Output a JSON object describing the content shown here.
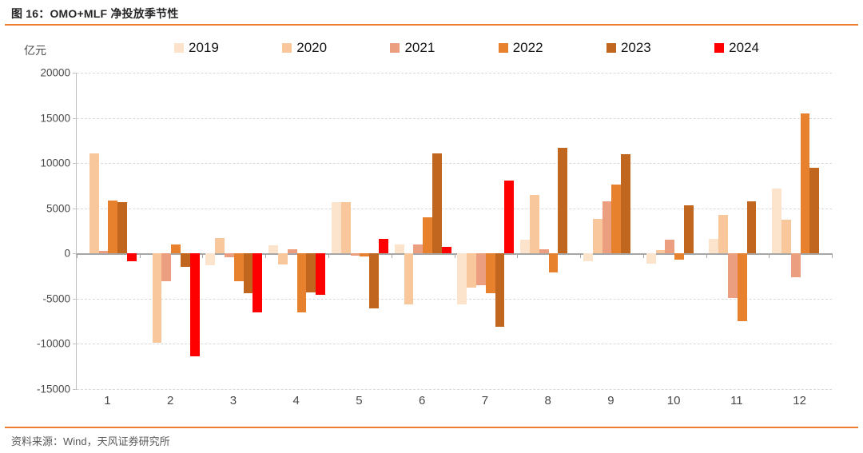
{
  "header": {
    "title": "图 16：OMO+MLF 净投放季节性"
  },
  "footer": {
    "source": "资料来源：Wind，天风证券研究所"
  },
  "colors": {
    "accent_rule": "#ed7d31",
    "axis_label": "#4a4a4a",
    "gridline": "#d9d9d9",
    "zero_line": "#a6a6a6"
  },
  "chart_data": {
    "type": "bar",
    "title": "OMO+MLF 净投放季节性",
    "y_unit": "亿元",
    "xlabel": "",
    "ylabel": "亿元",
    "ylim": [
      -15000,
      20000
    ],
    "ytick_step": 5000,
    "grid": "horizontal-dashed",
    "legend_position": "top",
    "categories": [
      "1",
      "2",
      "3",
      "4",
      "5",
      "6",
      "7",
      "8",
      "9",
      "10",
      "11",
      "12"
    ],
    "series": [
      {
        "name": "2019",
        "color": "#fce3cc",
        "values": [
          null,
          null,
          -1300,
          900,
          5700,
          1000,
          -5600,
          1500,
          -900,
          -1100,
          1600,
          7200
        ]
      },
      {
        "name": "2020",
        "color": "#f8c89c",
        "values": [
          11100,
          -9900,
          1700,
          -1200,
          5700,
          -5600,
          -3800,
          6500,
          3800,
          400,
          4300,
          3700
        ]
      },
      {
        "name": "2021",
        "color": "#eb9e80",
        "values": [
          300,
          -3100,
          -400,
          500,
          -200,
          1000,
          -3500,
          500,
          5800,
          1500,
          -4900,
          -2600
        ]
      },
      {
        "name": "2022",
        "color": "#e8812d",
        "values": [
          5900,
          1000,
          -3100,
          -6500,
          -300,
          4000,
          -4400,
          -2100,
          7600,
          -700,
          -7500,
          15500
        ]
      },
      {
        "name": "2023",
        "color": "#c0661e",
        "values": [
          5700,
          -1500,
          -4400,
          -4300,
          -6100,
          11100,
          -8100,
          11700,
          11000,
          5300,
          5800,
          9500
        ]
      },
      {
        "name": "2024",
        "color": "#fe0000",
        "values": [
          -900,
          -11400,
          -6500,
          -4600,
          1600,
          700,
          8100,
          null,
          null,
          null,
          null,
          null
        ]
      }
    ]
  }
}
